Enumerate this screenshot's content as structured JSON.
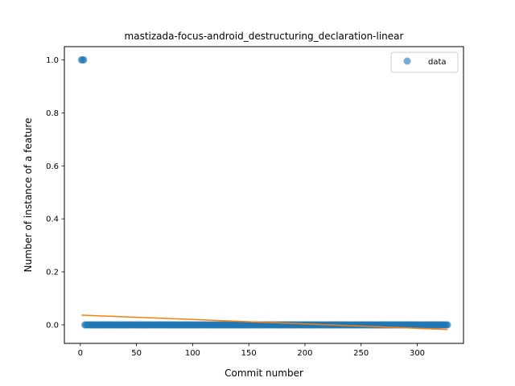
{
  "chart_data": {
    "type": "scatter",
    "title": "mastizada-focus-android_destructuring_declaration-linear",
    "xlabel": "Commit number",
    "ylabel": "Number of instance of a feature",
    "xlim": [
      -14.2,
      341.2
    ],
    "ylim": [
      -0.07,
      1.05
    ],
    "xticks": [
      0,
      50,
      100,
      150,
      200,
      250,
      300
    ],
    "yticks": [
      0.0,
      0.2,
      0.4,
      0.6,
      0.8,
      1.0
    ],
    "ytick_labels": [
      "0.0",
      "0.2",
      "0.4",
      "0.6",
      "0.8",
      "1.0"
    ],
    "legend": {
      "position": "top-right",
      "entries": [
        "data"
      ]
    },
    "grid": false,
    "series": [
      {
        "name": "data",
        "kind": "scatter",
        "color": "#1f77b4",
        "alpha": 0.6,
        "points": [
          [
            1,
            1.0
          ],
          [
            2,
            1.0
          ],
          [
            3,
            1.0
          ]
        ],
        "zero_range": {
          "x_start": 4,
          "x_end": 327,
          "y": 0.0
        }
      },
      {
        "kind": "line",
        "color": "#ff7f0e",
        "x": [
          1,
          327
        ],
        "y": [
          0.0365,
          -0.0175
        ]
      }
    ]
  }
}
